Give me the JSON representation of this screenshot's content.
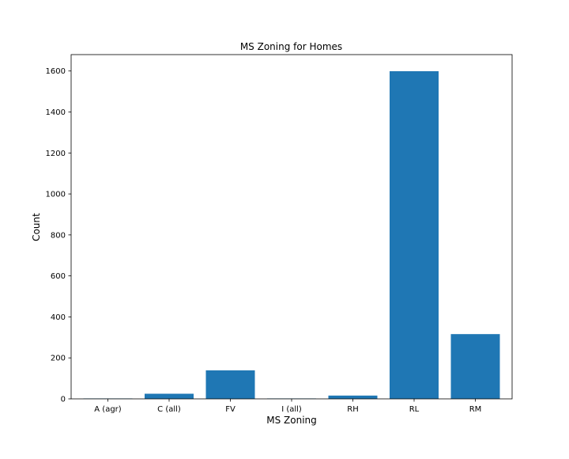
{
  "chart_data": {
    "type": "bar",
    "title": "MS Zoning for Homes",
    "xlabel": "MS Zoning",
    "ylabel": "Count",
    "categories": [
      "A (agr)",
      "C (all)",
      "FV",
      "I (all)",
      "RH",
      "RL",
      "RM"
    ],
    "values": [
      2,
      25,
      139,
      2,
      16,
      1599,
      316
    ],
    "ylim": [
      0,
      1680
    ],
    "yticks": [
      "0",
      "200",
      "400",
      "600",
      "800",
      "1000",
      "1200",
      "1400",
      "1600"
    ],
    "bar_color": "#1f77b4",
    "grid": false
  }
}
